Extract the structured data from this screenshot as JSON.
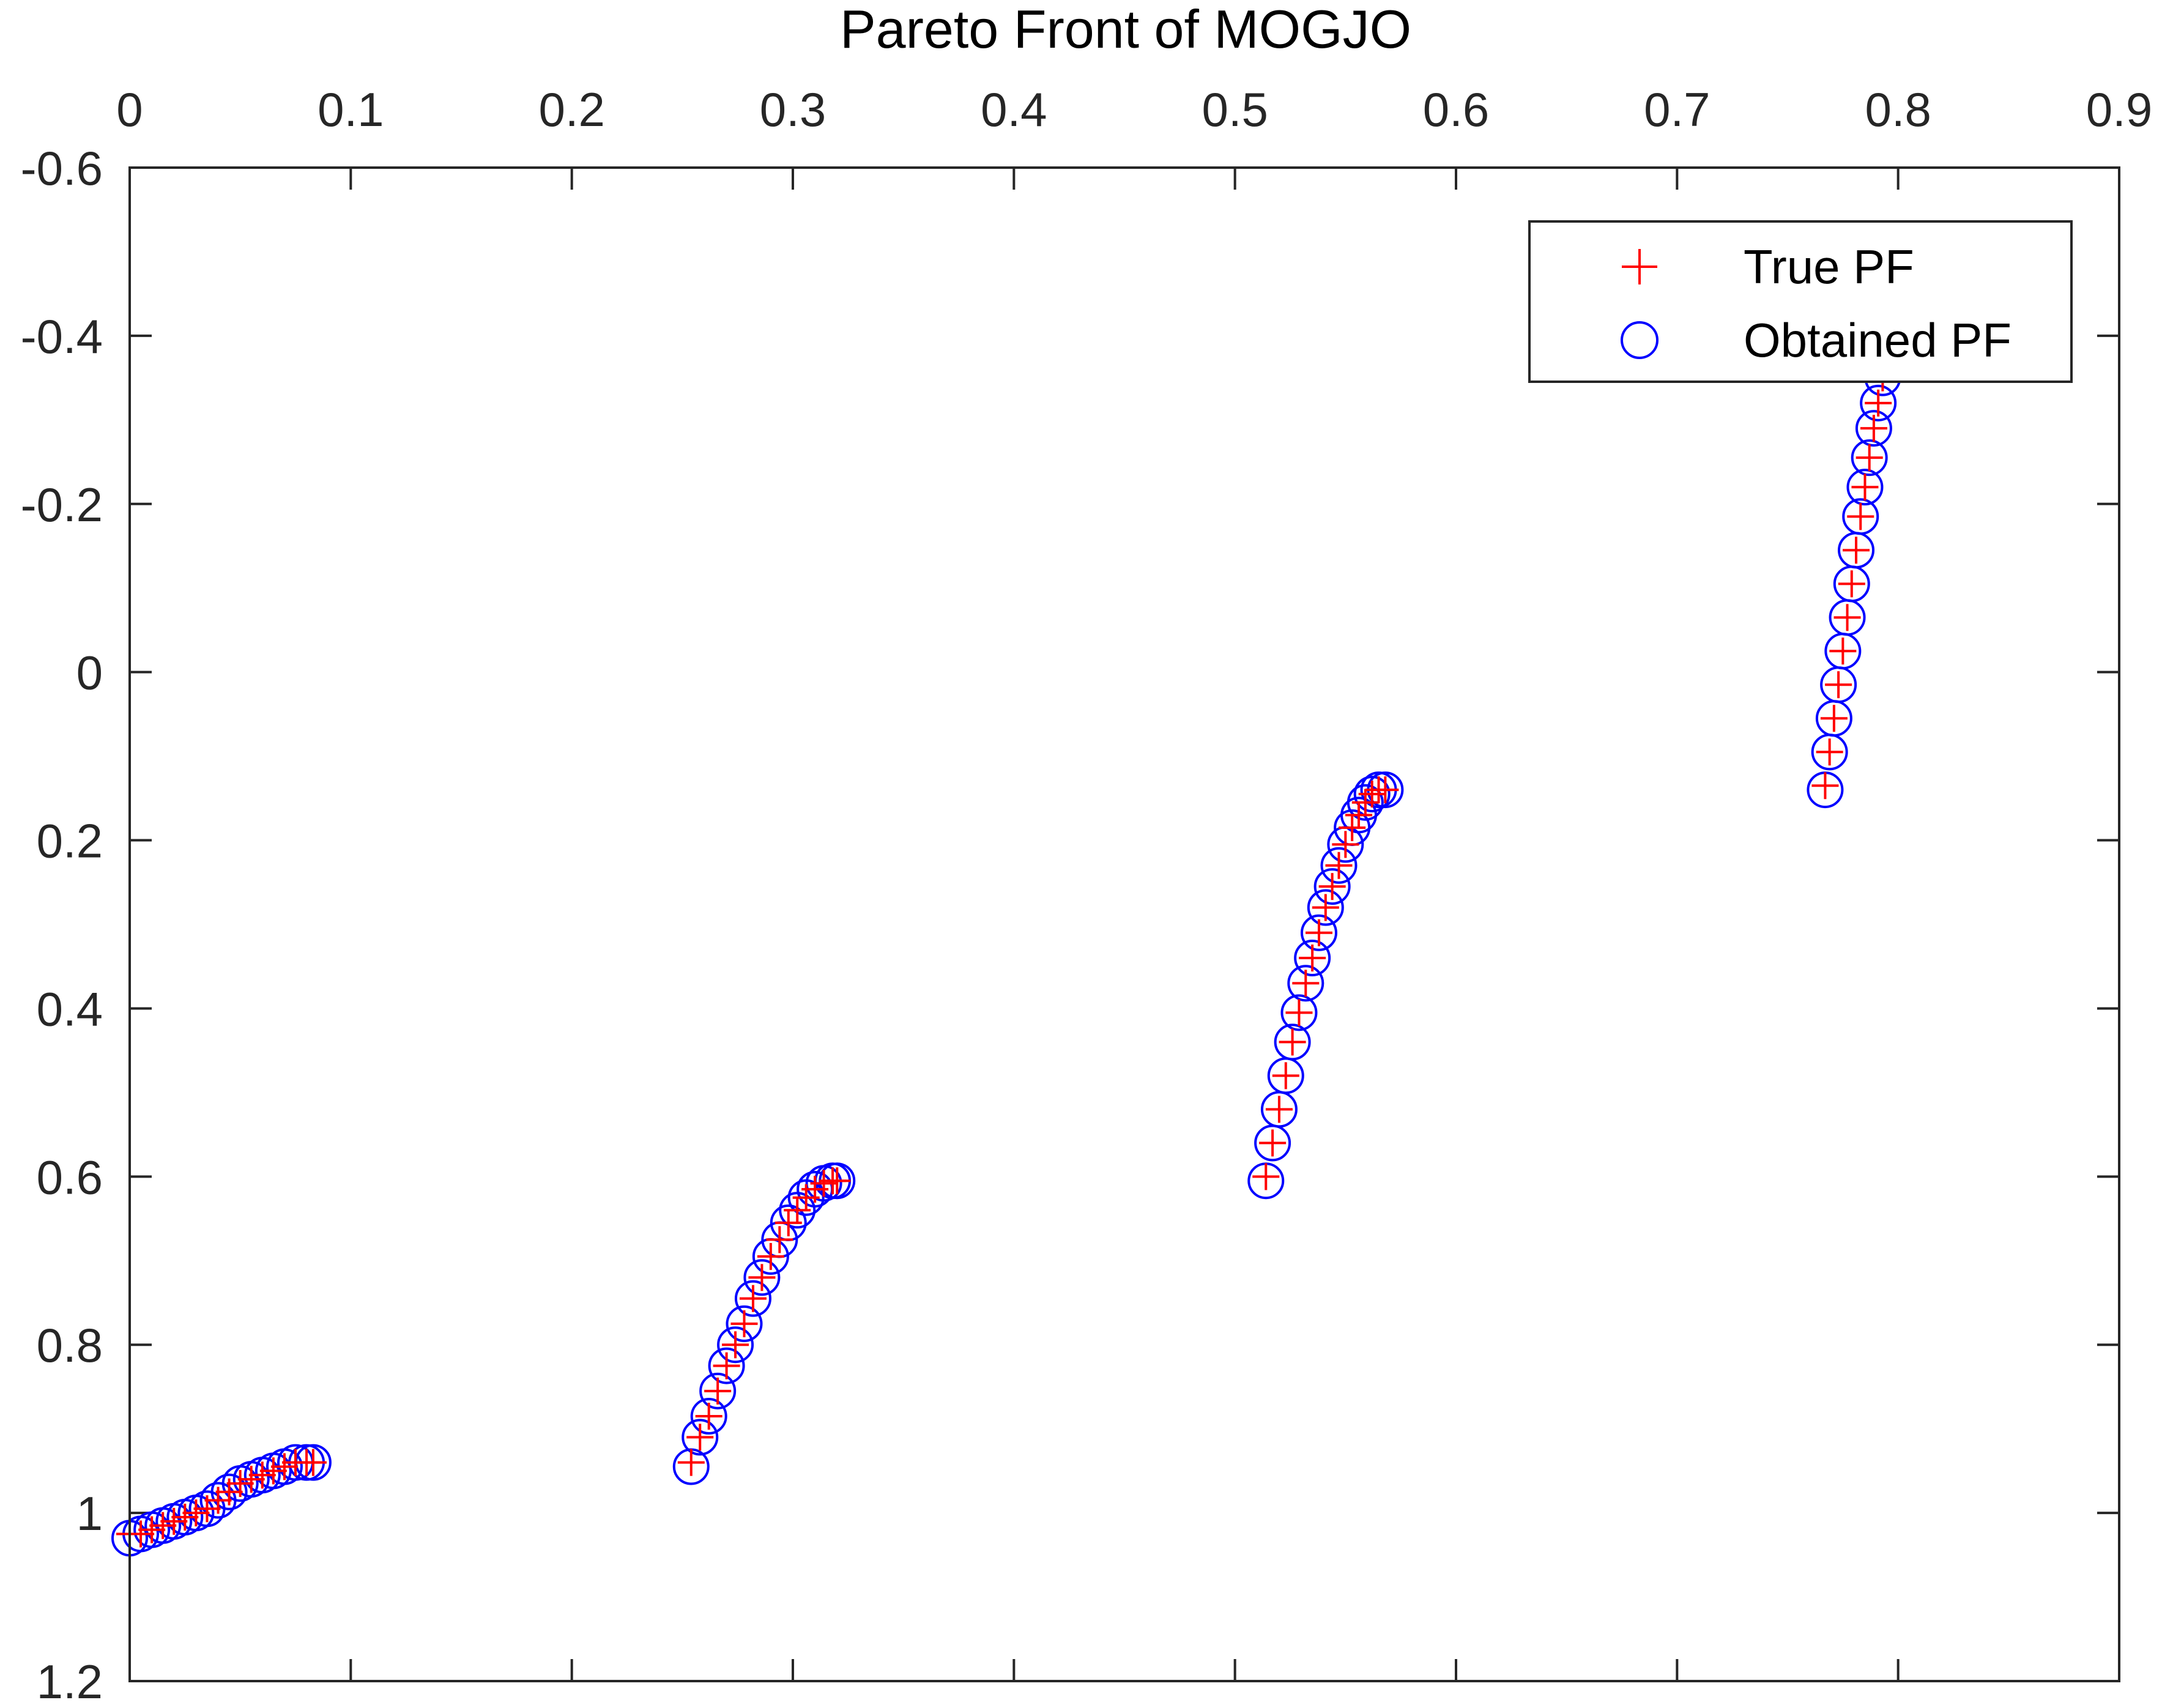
{
  "chart_data": {
    "type": "scatter",
    "title": "Pareto Front of MOGJO",
    "xlabel": "",
    "ylabel": "",
    "xlim": [
      0,
      0.9
    ],
    "ylim": [
      -0.6,
      1.2
    ],
    "y_reversed": true,
    "x_axis_location": "top",
    "grid": false,
    "legend_location": "top-right",
    "x_ticks": [
      0,
      0.1,
      0.2,
      0.3,
      0.4,
      0.5,
      0.6,
      0.7,
      0.8,
      0.9
    ],
    "x_tick_labels": [
      "0",
      "0.1",
      "0.2",
      "0.3",
      "0.4",
      "0.5",
      "0.6",
      "0.7",
      "0.8",
      "0.9"
    ],
    "y_ticks": [
      -0.6,
      -0.4,
      -0.2,
      0,
      0.2,
      0.4,
      0.6,
      0.8,
      1,
      1.2
    ],
    "y_tick_labels": [
      "-0.6",
      "-0.4",
      "-0.2",
      "0",
      "0.2",
      "0.4",
      "0.6",
      "0.8",
      "1",
      "1.2"
    ],
    "series": [
      {
        "name": "True PF",
        "marker": "plus",
        "color": "#ff0000",
        "x": [
          0.0,
          0.005,
          0.01,
          0.015,
          0.02,
          0.025,
          0.03,
          0.035,
          0.04,
          0.045,
          0.05,
          0.055,
          0.06,
          0.065,
          0.07,
          0.075,
          0.08,
          0.083,
          0.254,
          0.258,
          0.262,
          0.266,
          0.27,
          0.274,
          0.278,
          0.282,
          0.286,
          0.29,
          0.294,
          0.298,
          0.302,
          0.306,
          0.31,
          0.314,
          0.318,
          0.32,
          0.514,
          0.517,
          0.52,
          0.523,
          0.526,
          0.529,
          0.532,
          0.535,
          0.538,
          0.541,
          0.544,
          0.547,
          0.55,
          0.553,
          0.556,
          0.559,
          0.562,
          0.565,
          0.568,
          0.767,
          0.769,
          0.771,
          0.773,
          0.775,
          0.777,
          0.779,
          0.781,
          0.783,
          0.785,
          0.787,
          0.789,
          0.791,
          0.793,
          0.795,
          0.797
        ],
        "y": [
          1.025,
          1.025,
          1.02,
          1.015,
          1.01,
          1.005,
          1.0,
          0.995,
          0.985,
          0.975,
          0.965,
          0.96,
          0.955,
          0.95,
          0.945,
          0.94,
          0.94,
          0.94,
          0.94,
          0.91,
          0.885,
          0.855,
          0.825,
          0.8,
          0.775,
          0.745,
          0.72,
          0.695,
          0.675,
          0.655,
          0.64,
          0.625,
          0.615,
          0.608,
          0.605,
          0.605,
          0.6,
          0.56,
          0.52,
          0.48,
          0.44,
          0.405,
          0.37,
          0.34,
          0.31,
          0.28,
          0.255,
          0.23,
          0.205,
          0.185,
          0.17,
          0.155,
          0.145,
          0.14,
          0.14,
          0.135,
          0.095,
          0.055,
          0.015,
          -0.025,
          -0.065,
          -0.105,
          -0.145,
          -0.185,
          -0.22,
          -0.255,
          -0.29,
          -0.32,
          -0.35,
          -0.38,
          -0.4
        ]
      },
      {
        "name": "Obtained PF",
        "marker": "circle",
        "color": "#0000ff",
        "x": [
          0.0,
          0.005,
          0.01,
          0.015,
          0.02,
          0.025,
          0.03,
          0.035,
          0.04,
          0.045,
          0.05,
          0.055,
          0.06,
          0.065,
          0.07,
          0.075,
          0.08,
          0.083,
          0.254,
          0.258,
          0.262,
          0.266,
          0.27,
          0.274,
          0.278,
          0.282,
          0.286,
          0.29,
          0.294,
          0.298,
          0.302,
          0.306,
          0.31,
          0.314,
          0.318,
          0.32,
          0.514,
          0.517,
          0.52,
          0.523,
          0.526,
          0.529,
          0.532,
          0.535,
          0.538,
          0.541,
          0.544,
          0.547,
          0.55,
          0.553,
          0.556,
          0.559,
          0.562,
          0.565,
          0.568,
          0.767,
          0.769,
          0.771,
          0.773,
          0.775,
          0.777,
          0.779,
          0.781,
          0.783,
          0.785,
          0.787,
          0.789,
          0.791,
          0.793,
          0.795,
          0.797
        ],
        "y": [
          1.03,
          1.025,
          1.02,
          1.015,
          1.01,
          1.005,
          1.0,
          0.995,
          0.985,
          0.975,
          0.965,
          0.96,
          0.955,
          0.95,
          0.945,
          0.94,
          0.94,
          0.94,
          0.945,
          0.91,
          0.885,
          0.855,
          0.825,
          0.8,
          0.775,
          0.745,
          0.72,
          0.695,
          0.675,
          0.655,
          0.64,
          0.625,
          0.615,
          0.608,
          0.605,
          0.605,
          0.605,
          0.56,
          0.52,
          0.48,
          0.44,
          0.405,
          0.37,
          0.34,
          0.31,
          0.28,
          0.255,
          0.23,
          0.205,
          0.185,
          0.17,
          0.155,
          0.145,
          0.14,
          0.14,
          0.14,
          0.095,
          0.055,
          0.015,
          -0.025,
          -0.065,
          -0.105,
          -0.145,
          -0.185,
          -0.22,
          -0.255,
          -0.29,
          -0.32,
          -0.35,
          -0.38,
          -0.4
        ]
      }
    ]
  }
}
